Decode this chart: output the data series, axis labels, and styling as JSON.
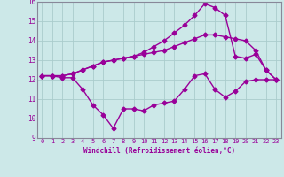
{
  "xlabel": "Windchill (Refroidissement éolien,°C)",
  "background_color": "#cce8e8",
  "grid_color": "#aacccc",
  "line_color": "#990099",
  "spine_color": "#888899",
  "x_values": [
    0,
    1,
    2,
    3,
    4,
    5,
    6,
    7,
    8,
    9,
    10,
    11,
    12,
    13,
    14,
    15,
    16,
    17,
    18,
    19,
    20,
    21,
    22,
    23
  ],
  "line1": [
    12.2,
    12.2,
    12.1,
    12.1,
    11.5,
    10.7,
    10.2,
    9.5,
    10.5,
    10.5,
    10.4,
    10.7,
    10.8,
    10.9,
    11.5,
    12.2,
    12.3,
    11.5,
    11.1,
    11.4,
    11.9,
    12.0,
    12.0,
    12.0
  ],
  "line2": [
    12.2,
    12.2,
    12.2,
    12.3,
    12.5,
    12.7,
    12.9,
    13.0,
    13.1,
    13.2,
    13.3,
    13.4,
    13.5,
    13.7,
    13.9,
    14.1,
    14.3,
    14.3,
    14.2,
    14.1,
    14.0,
    13.5,
    12.5,
    12.0
  ],
  "line3": [
    12.2,
    12.2,
    12.2,
    12.3,
    12.5,
    12.7,
    12.9,
    13.0,
    13.1,
    13.2,
    13.4,
    13.7,
    14.0,
    14.4,
    14.8,
    15.3,
    15.9,
    15.7,
    15.3,
    13.2,
    13.1,
    13.3,
    12.5,
    12.0
  ],
  "ylim": [
    9,
    16
  ],
  "xlim": [
    -0.5,
    23.5
  ],
  "yticks": [
    9,
    10,
    11,
    12,
    13,
    14,
    15,
    16
  ],
  "xticks": [
    0,
    1,
    2,
    3,
    4,
    5,
    6,
    7,
    8,
    9,
    10,
    11,
    12,
    13,
    14,
    15,
    16,
    17,
    18,
    19,
    20,
    21,
    22,
    23
  ]
}
